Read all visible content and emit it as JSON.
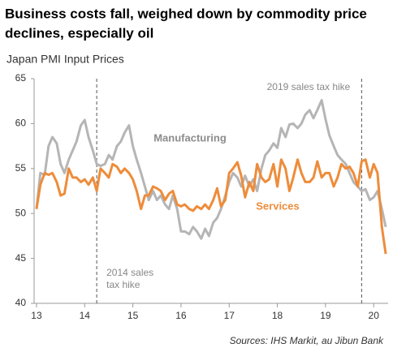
{
  "chart_data": {
    "type": "line",
    "title_lines": [
      "Business costs fall, weighed down by commodity price",
      "declines, especially oil"
    ],
    "y_label": "Japan PMI Input Prices",
    "source": "Sources: IHS Markit, au Jibun Bank",
    "x": [
      13,
      13.08,
      13.17,
      13.25,
      13.33,
      13.42,
      13.5,
      13.58,
      13.67,
      13.75,
      13.83,
      13.92,
      14,
      14.08,
      14.17,
      14.25,
      14.33,
      14.42,
      14.5,
      14.58,
      14.67,
      14.75,
      14.83,
      14.92,
      15,
      15.08,
      15.17,
      15.25,
      15.33,
      15.42,
      15.5,
      15.58,
      15.67,
      15.75,
      15.83,
      15.92,
      16,
      16.08,
      16.17,
      16.25,
      16.33,
      16.42,
      16.5,
      16.58,
      16.67,
      16.75,
      16.83,
      16.92,
      17,
      17.08,
      17.17,
      17.25,
      17.33,
      17.42,
      17.5,
      17.58,
      17.67,
      17.75,
      17.83,
      17.92,
      18,
      18.08,
      18.17,
      18.25,
      18.33,
      18.42,
      18.5,
      18.58,
      18.67,
      18.75,
      18.83,
      18.92,
      19,
      19.08,
      19.17,
      19.25,
      19.33,
      19.42,
      19.5,
      19.58,
      19.67,
      19.75,
      19.83,
      19.92,
      20,
      20.08,
      20.17,
      20.25
    ],
    "series": [
      {
        "name": "Manufacturing",
        "color": "#b5b5b5",
        "values": [
          50.5,
          54.5,
          54.3,
          57.5,
          58.5,
          57.8,
          55.5,
          54.5,
          56.0,
          57.0,
          58.0,
          59.8,
          60.4,
          58.5,
          57.0,
          55.5,
          55.3,
          55.5,
          56.5,
          56.0,
          57.5,
          58.0,
          59.0,
          59.8,
          57.5,
          56.0,
          54.5,
          53.0,
          51.5,
          52.5,
          51.5,
          52.0,
          51.0,
          50.5,
          52.0,
          50.5,
          48.0,
          48.0,
          47.7,
          48.5,
          48.0,
          47.2,
          48.3,
          47.5,
          49.0,
          49.5,
          50.5,
          52.0,
          53.5,
          54.5,
          54.0,
          53.0,
          54.2,
          53.0,
          53.8,
          52.5,
          55.0,
          56.5,
          57.0,
          57.8,
          57.3,
          59.5,
          58.5,
          59.9,
          60.0,
          59.5,
          60.0,
          61.0,
          61.5,
          60.6,
          61.5,
          62.6,
          60.5,
          58.7,
          57.5,
          56.5,
          56.0,
          55.5,
          54.5,
          53.5,
          53.0,
          52.5,
          52.7,
          51.5,
          51.8,
          52.5,
          50.5,
          48.5
        ]
      },
      {
        "name": "Services",
        "color": "#ee8c3a",
        "values": [
          50.5,
          53.2,
          54.5,
          54.3,
          54.5,
          53.5,
          52.0,
          52.2,
          55.0,
          54.0,
          54.0,
          53.5,
          53.8,
          53.2,
          54.0,
          52.5,
          55.0,
          54.5,
          54.0,
          55.5,
          55.2,
          54.5,
          55.0,
          54.5,
          53.8,
          52.5,
          50.5,
          52.0,
          52.0,
          53.0,
          52.8,
          52.5,
          51.5,
          52.2,
          52.5,
          51.0,
          50.8,
          51.0,
          50.5,
          50.3,
          50.8,
          50.5,
          51.0,
          50.5,
          51.5,
          52.8,
          50.8,
          51.5,
          54.5,
          55.0,
          55.7,
          54.2,
          51.8,
          53.5,
          52.5,
          55.5,
          54.0,
          53.5,
          53.8,
          55.5,
          53.0,
          56.0,
          55.0,
          52.5,
          54.0,
          56.0,
          54.5,
          53.5,
          53.5,
          54.0,
          55.8,
          54.0,
          54.5,
          54.5,
          53.0,
          54.0,
          55.5,
          55.0,
          55.2,
          54.5,
          53.0,
          55.8,
          56.0,
          54.0,
          55.5,
          54.5,
          48.5,
          45.5
        ]
      }
    ],
    "events": [
      {
        "x": 14.25,
        "label": [
          "2014 sales",
          "tax hike"
        ]
      },
      {
        "x": 19.75,
        "label": [
          "2019 sales tax hike"
        ]
      }
    ],
    "xlim": [
      12.95,
      20.3
    ],
    "xticks": [
      13,
      14,
      15,
      16,
      17,
      18,
      19,
      20
    ],
    "ylim": [
      40,
      65
    ],
    "yticks": [
      40,
      45,
      50,
      55,
      60,
      65
    ]
  }
}
